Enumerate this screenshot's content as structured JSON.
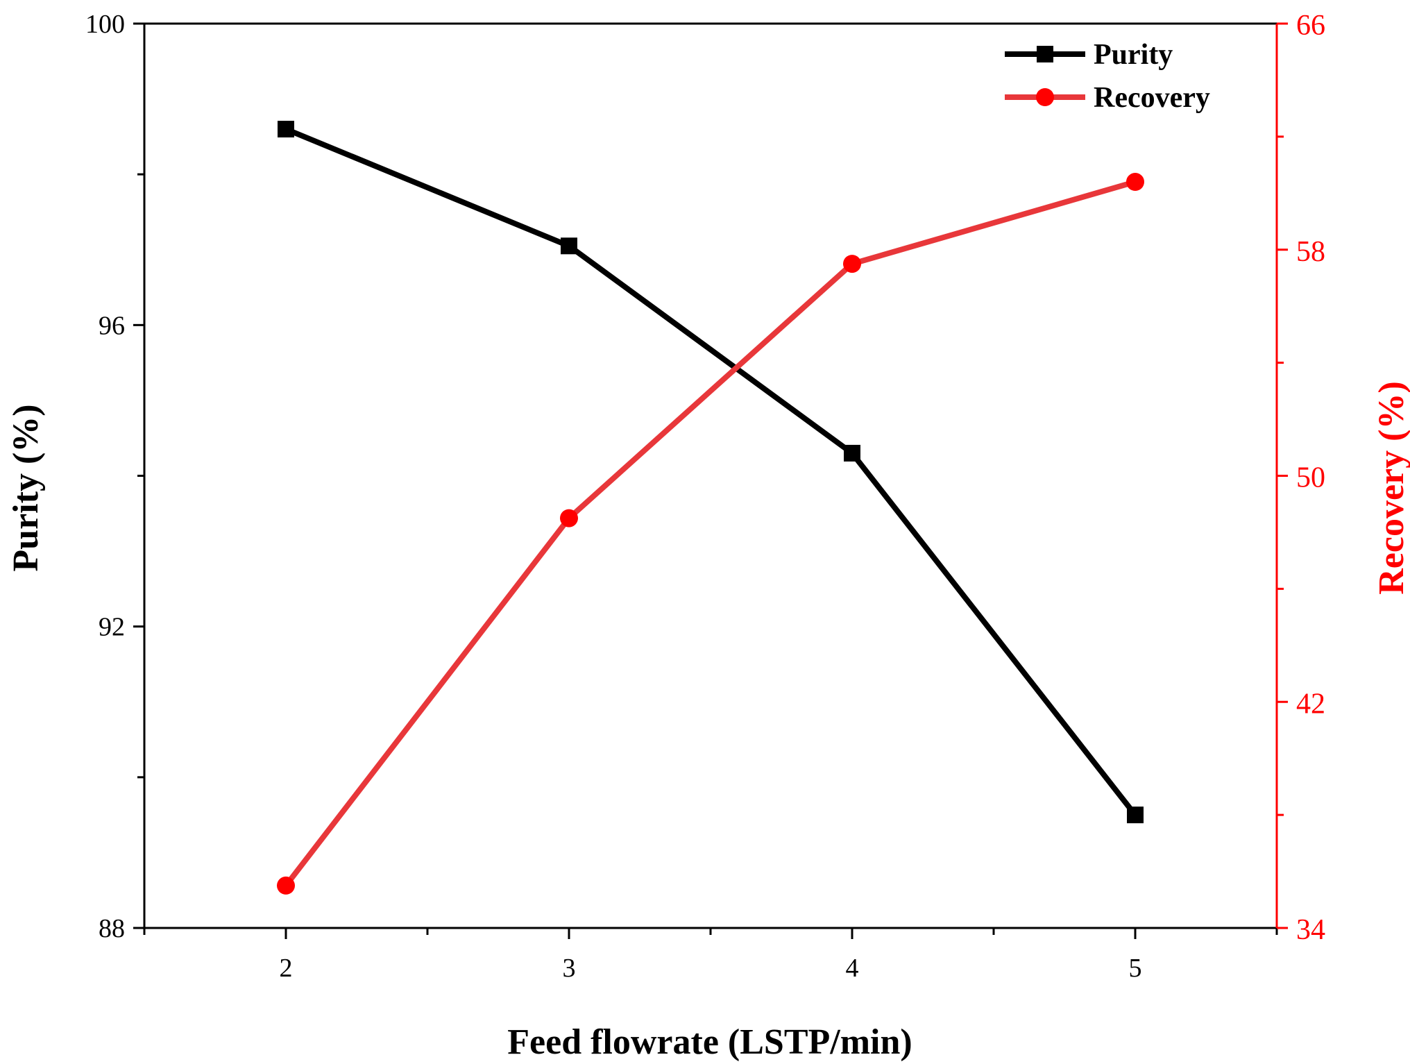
{
  "chart_data": {
    "type": "line",
    "title": "",
    "xlabel": "Feed flowrate (LSTP/min)",
    "ylabel": "Purity (%)",
    "y2label": "Recovery (%)",
    "x": [
      2,
      3,
      4,
      5
    ],
    "xlim": [
      1.5,
      5.5
    ],
    "xticks": [
      2,
      3,
      4,
      5
    ],
    "xtick_labels": [
      "2",
      "3",
      "4",
      "5"
    ],
    "ylim": [
      88,
      100
    ],
    "yticks": [
      88,
      92,
      96,
      100
    ],
    "ytick_labels": [
      "88",
      "92",
      "96",
      "100"
    ],
    "y2lim": [
      34,
      66
    ],
    "y2ticks": [
      34,
      42,
      50,
      58,
      66
    ],
    "y2tick_labels": [
      "34",
      "42",
      "50",
      "58",
      "66"
    ],
    "grid": false,
    "legend_position": "top-right",
    "series": [
      {
        "name": "Purity",
        "axis": "left",
        "marker": "square",
        "color": "#000000",
        "values": [
          98.6,
          97.05,
          94.3,
          89.5
        ]
      },
      {
        "name": "Recovery",
        "axis": "right",
        "marker": "circle",
        "color": "#e8373a",
        "values": [
          35.5,
          48.5,
          57.5,
          60.4
        ]
      }
    ],
    "right_axis_color": "#ff0000"
  }
}
